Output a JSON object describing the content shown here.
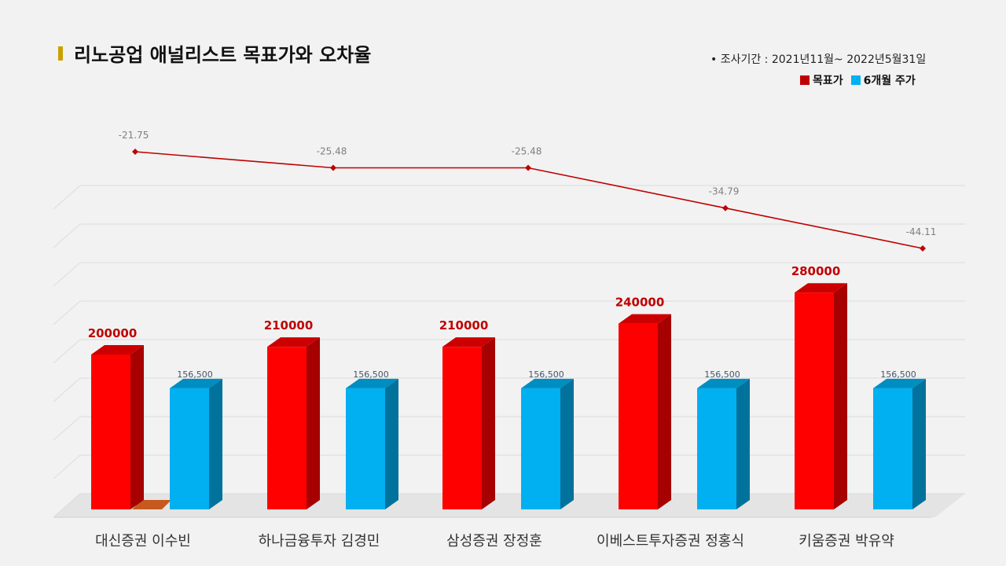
{
  "title": "리노공업 애널리스트 목표가와 오차율",
  "period": "•  조사기간 : 2021년11월~ 2022년5월31일",
  "legend": {
    "target_label": "목표가",
    "target_color": "#ff0000",
    "price_label": "6개월 주가",
    "price_color": "#00b0f0"
  },
  "chart_data": {
    "type": "bar",
    "categories": [
      "대신증권 이수빈",
      "하나금융투자 김경민",
      "삼성증권 장정훈",
      "이베스트투자증권 정홍식",
      "키움증권 박유약"
    ],
    "series": [
      {
        "name": "목표가",
        "values": [
          200000,
          210000,
          210000,
          240000,
          280000
        ],
        "labels": [
          "200000",
          "210000",
          "210000",
          "240000",
          "280000"
        ]
      },
      {
        "name": "6개월 주가",
        "values": [
          156500,
          156500,
          156500,
          156500,
          156500
        ],
        "labels": [
          "156,500",
          "156,500",
          "156,500",
          "156,500",
          "156,500"
        ]
      }
    ],
    "error_rate": {
      "values": [
        -21.75,
        -25.48,
        -25.48,
        -34.79,
        -44.11
      ],
      "labels": [
        "-21.75",
        "-25.48",
        "-25.48",
        "-34.79",
        "-44.11"
      ],
      "color": "#c00000"
    },
    "ylim": [
      0,
      320000
    ],
    "grid": true
  }
}
